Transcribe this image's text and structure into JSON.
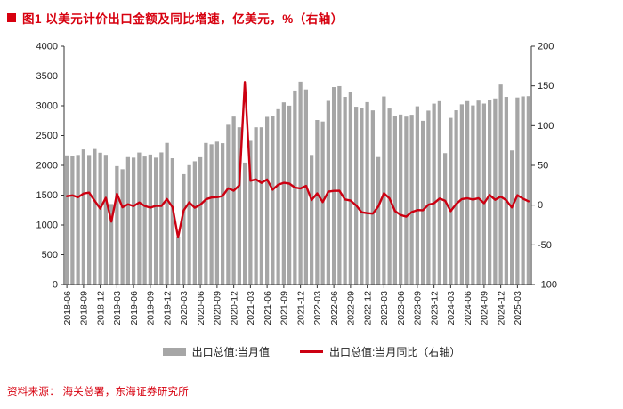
{
  "header": {
    "title": "图1  以美元计价出口金额及同比增速，亿美元，%（右轴）"
  },
  "legend": {
    "bars": "出口总值:当月值",
    "line": "出口总值:当月同比（右轴）"
  },
  "footer": {
    "source": "资料来源： 海关总署，东海证券研究所"
  },
  "colors": {
    "accent_red": "#d7000f",
    "line_red": "#cc0011",
    "bar_gray": "#a6a6a6",
    "axis": "#333333",
    "tick_label": "#222222"
  },
  "chart_data": {
    "type": "bar",
    "title": "以美元计价出口金额及同比增速，亿美元，%（右轴）",
    "xlabel": "",
    "ylabel_left": "亿美元",
    "ylabel_right": "%",
    "grid": false,
    "legend_position": "bottom",
    "left_axis": {
      "min": 0,
      "max": 4000,
      "step": 500
    },
    "right_axis": {
      "min": -100,
      "max": 200,
      "step": 50
    },
    "x_tick_every": 3,
    "x": [
      "2018-06",
      "2018-07",
      "2018-08",
      "2018-09",
      "2018-10",
      "2018-11",
      "2018-12",
      "2019-01",
      "2019-02",
      "2019-03",
      "2019-04",
      "2019-05",
      "2019-06",
      "2019-07",
      "2019-08",
      "2019-09",
      "2019-10",
      "2019-11",
      "2019-12",
      "2020-01",
      "2020-02",
      "2020-03",
      "2020-04",
      "2020-05",
      "2020-06",
      "2020-07",
      "2020-08",
      "2020-09",
      "2020-10",
      "2020-11",
      "2020-12",
      "2021-01",
      "2021-02",
      "2021-03",
      "2021-04",
      "2021-05",
      "2021-06",
      "2021-07",
      "2021-08",
      "2021-09",
      "2021-10",
      "2021-11",
      "2021-12",
      "2022-01",
      "2022-02",
      "2022-03",
      "2022-04",
      "2022-05",
      "2022-06",
      "2022-07",
      "2022-08",
      "2022-09",
      "2022-10",
      "2022-11",
      "2022-12",
      "2023-01",
      "2023-02",
      "2023-03",
      "2023-04",
      "2023-05",
      "2023-06",
      "2023-07",
      "2023-08",
      "2023-09",
      "2023-10",
      "2023-11",
      "2023-12",
      "2024-01",
      "2024-02",
      "2024-03",
      "2024-04",
      "2024-05",
      "2024-06",
      "2024-07",
      "2024-08",
      "2024-09",
      "2024-10",
      "2024-11",
      "2024-12",
      "2025-01",
      "2025-02",
      "2025-03",
      "2025-04",
      "2025-05"
    ],
    "series": [
      {
        "name": "出口总值:当月值",
        "type": "bar",
        "axis": "left",
        "values": [
          2167,
          2156,
          2174,
          2267,
          2173,
          2274,
          2212,
          2176,
          1352,
          1987,
          1935,
          2138,
          2129,
          2215,
          2148,
          2181,
          2129,
          2217,
          2377,
          2119,
          805,
          1852,
          2003,
          2068,
          2136,
          2376,
          2353,
          2398,
          2372,
          2681,
          2819,
          2639,
          2046,
          2411,
          2639,
          2639,
          2814,
          2827,
          2943,
          3057,
          3002,
          3255,
          3405,
          3273,
          2174,
          2761,
          2736,
          3082,
          3313,
          3329,
          3149,
          3228,
          2984,
          2961,
          3061,
          2923,
          2139,
          3156,
          2954,
          2835,
          2853,
          2818,
          2849,
          2991,
          2748,
          2919,
          3036,
          3077,
          2205,
          2797,
          2925,
          3024,
          3078,
          3006,
          3087,
          3037,
          3091,
          3123,
          3356,
          3149,
          2250,
          3139,
          3157,
          3161
        ]
      },
      {
        "name": "出口总值:当月同比（右轴）",
        "type": "line",
        "axis": "right",
        "values": [
          11.2,
          12.2,
          9.8,
          14.5,
          15.6,
          5.4,
          -4.4,
          9.1,
          -20.8,
          14.2,
          -2.7,
          1.1,
          -1.3,
          3.3,
          -1.0,
          -3.2,
          -0.9,
          -1.1,
          7.6,
          -2.6,
          -40.6,
          -6.6,
          3.5,
          -3.3,
          0.5,
          7.2,
          9.5,
          9.9,
          11.4,
          21.1,
          18.1,
          24.8,
          154.9,
          30.6,
          32.3,
          27.9,
          32.2,
          19.3,
          25.6,
          28.1,
          27.1,
          22.0,
          20.9,
          24.1,
          6.3,
          14.7,
          3.9,
          16.9,
          17.9,
          18.0,
          7.1,
          5.7,
          -0.3,
          -9.0,
          -10.1,
          -10.7,
          -1.6,
          14.8,
          8.5,
          -7.5,
          -12.4,
          -14.5,
          -8.8,
          -6.2,
          -6.4,
          0.5,
          2.3,
          8.2,
          5.6,
          -7.5,
          1.5,
          7.6,
          8.6,
          7.0,
          8.7,
          2.4,
          12.7,
          6.7,
          10.7,
          6.0,
          -3.0,
          12.4,
          8.1,
          4.8
        ]
      }
    ]
  }
}
